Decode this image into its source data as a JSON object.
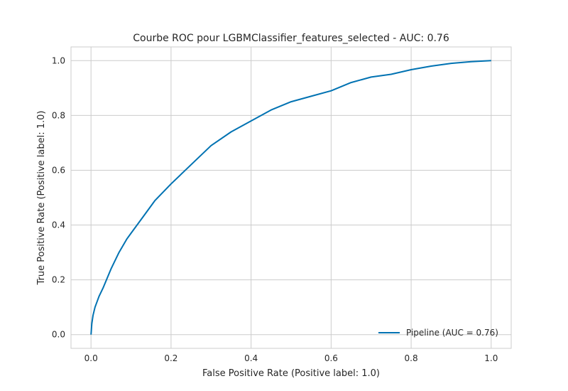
{
  "chart_data": {
    "type": "line",
    "title": "Courbe ROC pour LGBMClassifier_features_selected - AUC: 0.76",
    "xlabel": "False Positive Rate (Positive label: 1.0)",
    "ylabel": "True Positive Rate (Positive label: 1.0)",
    "xlim": [
      -0.05,
      1.05
    ],
    "ylim": [
      -0.05,
      1.05
    ],
    "xticks": [
      "0.0",
      "0.2",
      "0.4",
      "0.6",
      "0.8",
      "1.0"
    ],
    "yticks": [
      "0.0",
      "0.2",
      "0.4",
      "0.6",
      "0.8",
      "1.0"
    ],
    "grid": true,
    "legend_position": "lower-right",
    "series": [
      {
        "name": "Pipeline (AUC = 0.76)",
        "color": "#0072b2",
        "x": [
          0.0,
          0.002,
          0.005,
          0.01,
          0.02,
          0.03,
          0.05,
          0.07,
          0.09,
          0.1,
          0.13,
          0.16,
          0.2,
          0.25,
          0.3,
          0.35,
          0.4,
          0.45,
          0.5,
          0.55,
          0.6,
          0.65,
          0.7,
          0.75,
          0.8,
          0.85,
          0.9,
          0.95,
          1.0
        ],
        "y": [
          0.0,
          0.04,
          0.07,
          0.1,
          0.14,
          0.17,
          0.24,
          0.3,
          0.35,
          0.37,
          0.43,
          0.49,
          0.55,
          0.62,
          0.69,
          0.74,
          0.78,
          0.82,
          0.85,
          0.87,
          0.89,
          0.92,
          0.94,
          0.95,
          0.967,
          0.98,
          0.99,
          0.996,
          1.0
        ]
      }
    ]
  }
}
